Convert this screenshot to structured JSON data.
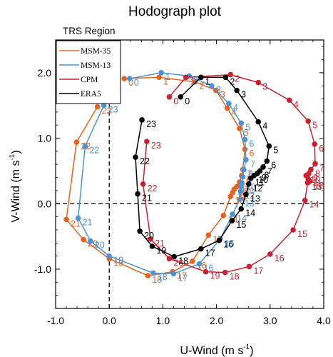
{
  "chart_data": {
    "type": "line",
    "title": "Hodograph plot",
    "subtitle": "TRS Region",
    "xlabel": "U-Wind (m s",
    "xlabel_sup": "-1",
    "xlabel_end": ")",
    "ylabel": "V-Wind (m s",
    "ylabel_sup": "-1",
    "ylabel_end": ")",
    "xlim": [
      -1.0,
      4.0
    ],
    "ylim": [
      -1.6,
      2.5
    ],
    "xticks": [
      "-1.0",
      "0.0",
      "1.0",
      "2.0",
      "3.0",
      "4.0"
    ],
    "xtick_values": [
      -1.0,
      0.0,
      1.0,
      2.0,
      3.0,
      4.0
    ],
    "yticks": [
      "-1.0",
      "0.0",
      "1.0",
      "2.0"
    ],
    "ytick_values": [
      -1.0,
      0.0,
      1.0,
      2.0
    ],
    "grid": false,
    "zero_lines": "dashed",
    "legend_position": "top-left",
    "series": [
      {
        "name": "MSM-35",
        "color": "#e8621c",
        "labels": [
          "0",
          "1",
          "2",
          "3",
          "4",
          "5",
          "6",
          "7",
          "8",
          "9",
          "10",
          "11",
          "12",
          "13",
          "14",
          "15",
          "16",
          "17",
          "18",
          "19",
          "20",
          "21",
          "22",
          "23"
        ],
        "x": [
          0.28,
          0.93,
          1.6,
          1.99,
          2.2,
          2.43,
          2.53,
          2.49,
          2.47,
          2.43,
          2.38,
          2.33,
          2.3,
          2.26,
          2.13,
          1.85,
          1.55,
          1.18,
          0.72,
          0.0,
          -0.48,
          -0.8,
          -0.61,
          -0.22
        ],
        "y": [
          1.91,
          1.93,
          1.86,
          1.73,
          1.46,
          1.15,
          0.83,
          0.52,
          0.43,
          0.33,
          0.26,
          0.22,
          0.17,
          0.11,
          -0.18,
          -0.48,
          -0.88,
          -1.04,
          -1.1,
          -0.84,
          -0.55,
          -0.24,
          0.94,
          1.48
        ]
      },
      {
        "name": "MSM-13",
        "color": "#4a94d4",
        "labels": [
          "0",
          "1",
          "2",
          "3",
          "4",
          "5",
          "6",
          "7",
          "8",
          "9",
          "10",
          "11",
          "12",
          "13",
          "14",
          "15",
          "16",
          "17",
          "18",
          "19",
          "20",
          "21",
          "22",
          "23"
        ],
        "x": [
          0.38,
          0.97,
          1.49,
          1.91,
          2.23,
          2.46,
          2.53,
          2.55,
          2.51,
          2.49,
          2.47,
          2.46,
          2.45,
          2.44,
          2.3,
          2.07,
          1.68,
          1.2,
          0.82,
          0.0,
          -0.35,
          -0.58,
          -0.45,
          -0.1
        ],
        "y": [
          1.91,
          2.0,
          1.95,
          1.8,
          1.53,
          1.23,
          0.98,
          0.67,
          0.52,
          0.41,
          0.32,
          0.26,
          0.19,
          0.07,
          -0.16,
          -0.54,
          -0.92,
          -1.07,
          -1.06,
          -0.8,
          -0.57,
          -0.22,
          0.88,
          1.5
        ]
      },
      {
        "name": "CPM",
        "color": "#cc2030",
        "labels": [
          "0",
          "1",
          "2",
          "3",
          "4",
          "5",
          "6",
          "7",
          "8",
          "9",
          "10",
          "11",
          "12",
          "13",
          "14",
          "15",
          "16",
          "17",
          "18",
          "19",
          "20",
          "21",
          "22",
          "23"
        ],
        "x": [
          1.12,
          1.43,
          2.26,
          2.78,
          3.36,
          3.71,
          3.83,
          3.84,
          3.76,
          3.72,
          3.67,
          3.71,
          3.74,
          3.7,
          3.65,
          3.43,
          3.0,
          2.61,
          2.16,
          1.8,
          1.12,
          0.77,
          0.63,
          0.7
        ],
        "y": [
          1.63,
          1.93,
          1.97,
          1.85,
          1.58,
          1.26,
          0.91,
          0.61,
          0.52,
          0.46,
          0.43,
          0.38,
          0.34,
          0.32,
          0.05,
          -0.4,
          -0.77,
          -0.96,
          -1.05,
          -1.04,
          -0.84,
          -0.54,
          0.3,
          0.95
        ]
      },
      {
        "name": "ERA5",
        "color": "#000000",
        "labels": [
          "0",
          "1",
          "2",
          "3",
          "4",
          "5",
          "6",
          "7",
          "8",
          "9",
          "10",
          "11",
          "12",
          "13",
          "14",
          "15",
          "16",
          "17",
          "18",
          "19",
          "20",
          "21",
          "22",
          "23"
        ],
        "x": [
          1.33,
          1.71,
          2.17,
          2.38,
          2.78,
          2.98,
          2.94,
          2.87,
          2.81,
          2.76,
          2.7,
          2.64,
          2.6,
          2.55,
          2.46,
          2.29,
          2.05,
          1.71,
          1.21,
          0.8,
          0.57,
          0.53,
          0.49,
          0.61
        ],
        "y": [
          1.63,
          1.93,
          1.93,
          1.73,
          1.25,
          0.88,
          0.65,
          0.56,
          0.5,
          0.46,
          0.43,
          0.39,
          0.3,
          0.14,
          -0.08,
          -0.26,
          -0.56,
          -0.69,
          -0.81,
          -0.65,
          -0.42,
          0.15,
          0.71,
          1.28
        ]
      }
    ]
  }
}
